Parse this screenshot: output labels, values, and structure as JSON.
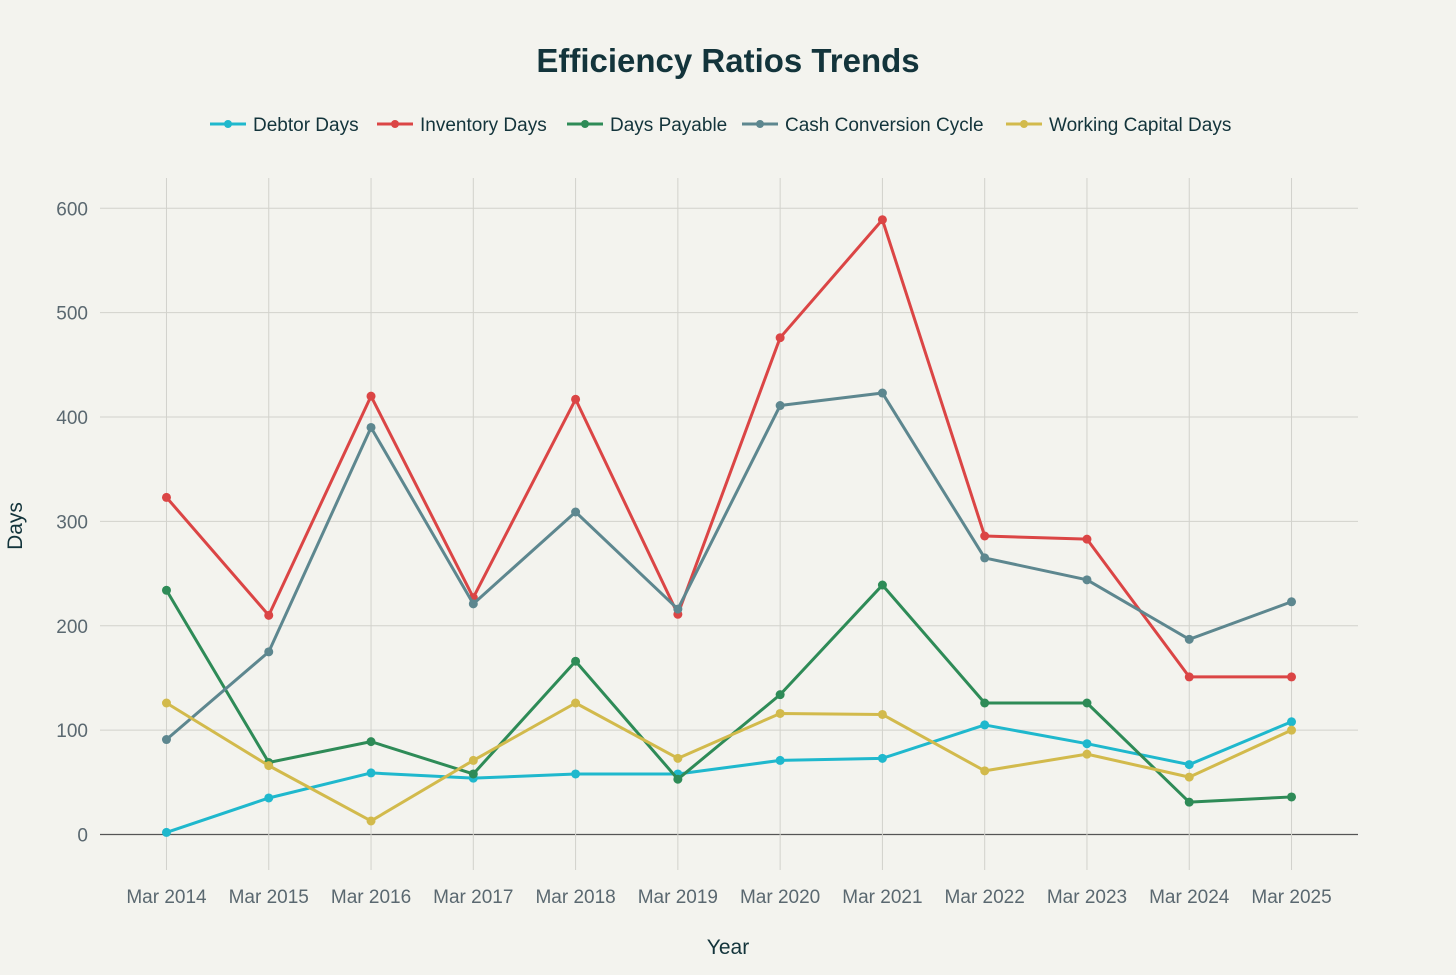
{
  "chart_data": {
    "type": "line",
    "title": "Efficiency Ratios Trends",
    "xlabel": "Year",
    "ylabel": "Days",
    "categories": [
      "Mar 2014",
      "Mar 2015",
      "Mar 2016",
      "Mar 2017",
      "Mar 2018",
      "Mar 2019",
      "Mar 2020",
      "Mar 2021",
      "Mar 2022",
      "Mar 2023",
      "Mar 2024",
      "Mar 2025"
    ],
    "yticks": [
      0,
      100,
      200,
      300,
      400,
      500,
      600
    ],
    "ylim": [
      -34,
      629
    ],
    "grid": true,
    "legend_position": "top-center",
    "series": [
      {
        "name": "Debtor Days",
        "color": "#1FB8CD",
        "values": [
          2,
          35,
          59,
          54,
          58,
          58,
          71,
          73,
          105,
          87,
          67,
          108
        ]
      },
      {
        "name": "Inventory Days",
        "color": "#DB4545",
        "values": [
          323,
          210,
          420,
          227,
          417,
          211,
          476,
          589,
          286,
          283,
          151,
          151
        ]
      },
      {
        "name": "Days Payable",
        "color": "#2E8B57",
        "values": [
          234,
          69,
          89,
          58,
          166,
          53,
          134,
          239,
          126,
          126,
          31,
          36
        ]
      },
      {
        "name": "Cash Conversion Cycle",
        "color": "#5D878F",
        "values": [
          91,
          175,
          390,
          221,
          309,
          216,
          411,
          423,
          265,
          244,
          187,
          223
        ]
      },
      {
        "name": "Working Capital Days",
        "color": "#D2BA4C",
        "values": [
          126,
          66,
          13,
          71,
          126,
          73,
          116,
          115,
          61,
          77,
          55,
          100
        ]
      }
    ]
  }
}
